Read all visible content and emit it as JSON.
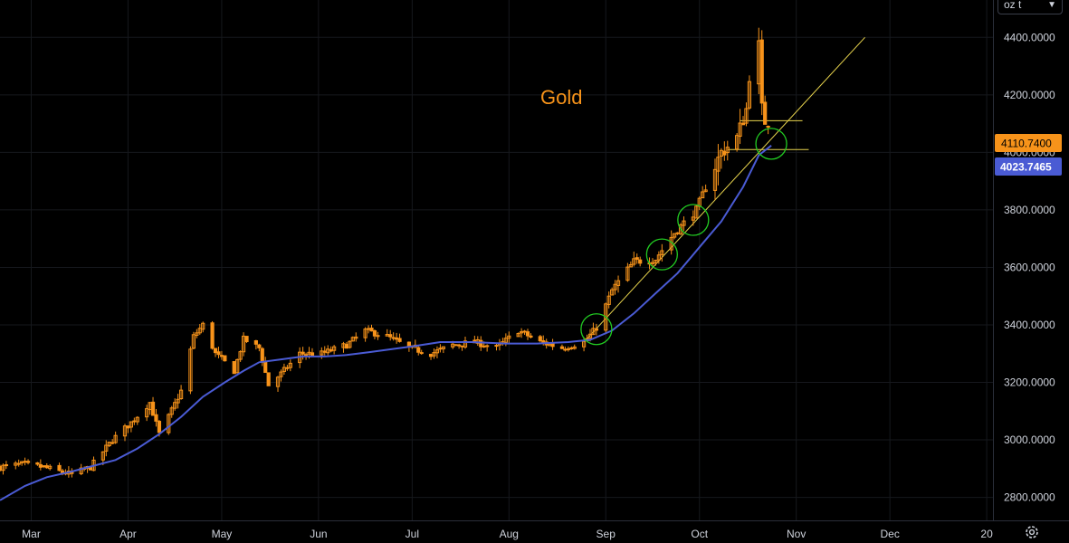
{
  "toolbar": {
    "unit_selector": {
      "value": "oz t",
      "icon": "chevron-down-icon"
    },
    "settings_icon": "gear-icon"
  },
  "colors": {
    "background": "#000000",
    "grid": "#16181d",
    "candle": "#f7931a",
    "moving_average": "#4a5bd4",
    "trendline": "#e8d44d",
    "highlight_circle": "#22cc22",
    "price_tag": "#f7931a",
    "ma_tag": "#4a5bd4",
    "title": "#f7931a"
  },
  "chart_data": {
    "type": "candlestick",
    "title": "Gold",
    "price_axis": {
      "side": "right",
      "range": [
        2720,
        4530
      ],
      "ticks": [
        "2800.0000",
        "3000.0000",
        "3200.0000",
        "3400.0000",
        "3600.0000",
        "3800.0000",
        "4000.0000",
        "4200.0000",
        "4400.0000"
      ],
      "tick_values": [
        2800,
        3000,
        3200,
        3400,
        3600,
        3800,
        4000,
        4200,
        4400
      ]
    },
    "time_axis": {
      "start": "2025-02-19",
      "end": "2026-01-03",
      "labels": [
        {
          "text": "Mar",
          "date": "2025-03-01"
        },
        {
          "text": "Apr",
          "date": "2025-04-01"
        },
        {
          "text": "May",
          "date": "2025-05-01"
        },
        {
          "text": "Jun",
          "date": "2025-06-01"
        },
        {
          "text": "Jul",
          "date": "2025-07-01"
        },
        {
          "text": "Aug",
          "date": "2025-08-01"
        },
        {
          "text": "Sep",
          "date": "2025-09-01"
        },
        {
          "text": "Oct",
          "date": "2025-10-01"
        },
        {
          "text": "Nov",
          "date": "2025-11-01"
        },
        {
          "text": "Dec",
          "date": "2025-12-01"
        },
        {
          "text": "20",
          "date": "2026-01-01"
        }
      ]
    },
    "last_price": {
      "value": 4110.74,
      "label": "4110.7400"
    },
    "moving_average_last": {
      "value": 4023.7465,
      "label": "4023.7465"
    },
    "close_path": [
      [
        "2025-02-19",
        2905
      ],
      [
        "2025-02-26",
        2915
      ],
      [
        "2025-03-05",
        2905
      ],
      [
        "2025-03-10",
        2890
      ],
      [
        "2025-03-14",
        2880
      ],
      [
        "2025-03-20",
        2905
      ],
      [
        "2025-03-27",
        3000
      ],
      [
        "2025-04-02",
        3060
      ],
      [
        "2025-04-08",
        3130
      ],
      [
        "2025-04-11",
        3020
      ],
      [
        "2025-04-14",
        3080
      ],
      [
        "2025-04-18",
        3170
      ],
      [
        "2025-04-22",
        3360
      ],
      [
        "2025-04-25",
        3400
      ],
      [
        "2025-04-29",
        3300
      ],
      [
        "2025-05-05",
        3240
      ],
      [
        "2025-05-08",
        3350
      ],
      [
        "2025-05-13",
        3320
      ],
      [
        "2025-05-16",
        3190
      ],
      [
        "2025-05-20",
        3230
      ],
      [
        "2025-05-26",
        3300
      ],
      [
        "2025-06-02",
        3300
      ],
      [
        "2025-06-10",
        3330
      ],
      [
        "2025-06-16",
        3380
      ],
      [
        "2025-06-23",
        3360
      ],
      [
        "2025-06-30",
        3320
      ],
      [
        "2025-07-07",
        3300
      ],
      [
        "2025-07-14",
        3330
      ],
      [
        "2025-07-21",
        3340
      ],
      [
        "2025-07-28",
        3320
      ],
      [
        "2025-08-04",
        3380
      ],
      [
        "2025-08-11",
        3340
      ],
      [
        "2025-08-18",
        3320
      ],
      [
        "2025-08-25",
        3340
      ],
      [
        "2025-08-29",
        3390
      ],
      [
        "2025-09-03",
        3520
      ],
      [
        "2025-09-10",
        3620
      ],
      [
        "2025-09-17",
        3630
      ],
      [
        "2025-09-23",
        3720
      ],
      [
        "2025-09-30",
        3800
      ],
      [
        "2025-10-03",
        3880
      ],
      [
        "2025-10-08",
        4000
      ],
      [
        "2025-10-13",
        4050
      ],
      [
        "2025-10-16",
        4150
      ],
      [
        "2025-10-17",
        4270
      ],
      [
        "2025-10-20",
        4370
      ],
      [
        "2025-10-21",
        4150
      ],
      [
        "2025-10-22",
        4110
      ],
      [
        "2025-10-23",
        4110
      ]
    ],
    "moving_average": [
      [
        "2025-02-19",
        2790
      ],
      [
        "2025-02-27",
        2840
      ],
      [
        "2025-03-06",
        2870
      ],
      [
        "2025-03-14",
        2890
      ],
      [
        "2025-03-21",
        2910
      ],
      [
        "2025-03-28",
        2930
      ],
      [
        "2025-04-04",
        2970
      ],
      [
        "2025-04-11",
        3020
      ],
      [
        "2025-04-18",
        3080
      ],
      [
        "2025-04-25",
        3150
      ],
      [
        "2025-05-02",
        3200
      ],
      [
        "2025-05-08",
        3240
      ],
      [
        "2025-05-13",
        3270
      ],
      [
        "2025-05-20",
        3280
      ],
      [
        "2025-05-27",
        3290
      ],
      [
        "2025-06-03",
        3290
      ],
      [
        "2025-06-10",
        3295
      ],
      [
        "2025-06-17",
        3305
      ],
      [
        "2025-06-24",
        3315
      ],
      [
        "2025-07-01",
        3325
      ],
      [
        "2025-07-10",
        3340
      ],
      [
        "2025-07-20",
        3340
      ],
      [
        "2025-07-31",
        3335
      ],
      [
        "2025-08-10",
        3335
      ],
      [
        "2025-08-20",
        3340
      ],
      [
        "2025-08-27",
        3348
      ],
      [
        "2025-09-03",
        3380
      ],
      [
        "2025-09-10",
        3440
      ],
      [
        "2025-09-17",
        3510
      ],
      [
        "2025-09-24",
        3580
      ],
      [
        "2025-10-01",
        3670
      ],
      [
        "2025-10-08",
        3760
      ],
      [
        "2025-10-15",
        3880
      ],
      [
        "2025-10-20",
        3990
      ],
      [
        "2025-10-24",
        4023.75
      ]
    ],
    "annotations": {
      "trendline": {
        "start": [
          "2025-08-25",
          3340
        ],
        "end": [
          "2025-11-23",
          4400
        ]
      },
      "horizontal_lines": [
        {
          "value": 4110,
          "from": "2025-10-14",
          "to": "2025-11-03"
        },
        {
          "value": 4010,
          "from": "2025-10-10",
          "to": "2025-11-05"
        }
      ],
      "circles": [
        {
          "date": "2025-08-29",
          "value": 3385
        },
        {
          "date": "2025-09-19",
          "value": 3645
        },
        {
          "date": "2025-09-29",
          "value": 3765
        },
        {
          "date": "2025-10-24",
          "value": 4030
        }
      ]
    }
  }
}
